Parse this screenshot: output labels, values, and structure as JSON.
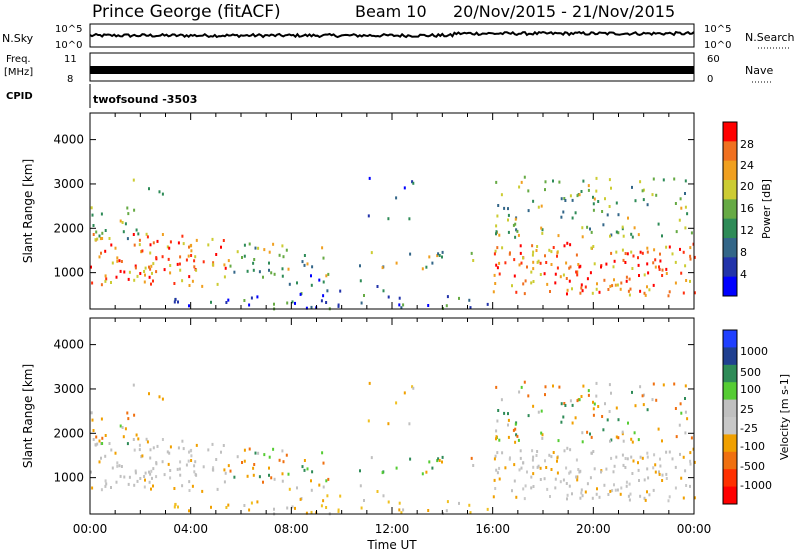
{
  "header": {
    "station": "Prince George (fitACF)",
    "beam": "Beam 10",
    "date_range": "20/Nov/2015 - 21/Nov/2015"
  },
  "noise_panel": {
    "left_label": "N.Sky",
    "left_ticks": [
      "10^5",
      "10^0"
    ],
    "right_ticks": [
      "10^5",
      "10^0"
    ],
    "right_label": "N.Search"
  },
  "freq_panel": {
    "label_line1": "Freq.",
    "label_line2": "[MHz]",
    "left_ticks": [
      "11",
      "8"
    ],
    "right_ticks": [
      "60",
      "0"
    ],
    "right_label": "Nave"
  },
  "cpid_panel": {
    "label": "CPID",
    "value": "twofsound -3503"
  },
  "chart_data": [
    {
      "type": "heatmap",
      "name": "power",
      "ylabel": "Slant Range [km]",
      "yticks": [
        1000,
        2000,
        3000,
        4000
      ],
      "ylim": [
        180,
        4600
      ],
      "xlim_hours": [
        0,
        24
      ],
      "colorbar": {
        "label": "Power [dB]",
        "ticks": [
          "4",
          "8",
          "12",
          "16",
          "20",
          "24",
          "28"
        ],
        "colors": [
          "#0000ff",
          "#2233aa",
          "#336688",
          "#2e8b57",
          "#66aa44",
          "#cccc33",
          "#f0a020",
          "#f07020",
          "#ff0000"
        ]
      }
    },
    {
      "type": "heatmap",
      "name": "velocity",
      "ylabel": "Slant Range [km]",
      "yticks": [
        1000,
        2000,
        3000,
        4000
      ],
      "ylim": [
        180,
        4600
      ],
      "xlim_hours": [
        0,
        24
      ],
      "colorbar": {
        "label": "Velocity [m s-1]",
        "ticks": [
          "1000",
          "500",
          "100",
          "25",
          "-25",
          "-100",
          "-500",
          "-1000"
        ],
        "colors": [
          "#2040ff",
          "#204090",
          "#2e8b57",
          "#55cc33",
          "#c0c0c0",
          "#c8c8c8",
          "#f0a000",
          "#f07010",
          "#ff3000",
          "#ff0000"
        ]
      }
    }
  ],
  "x_axis": {
    "label": "Time UT",
    "ticks": [
      "00:00",
      "04:00",
      "08:00",
      "12:00",
      "16:00",
      "20:00",
      "00:00"
    ]
  }
}
